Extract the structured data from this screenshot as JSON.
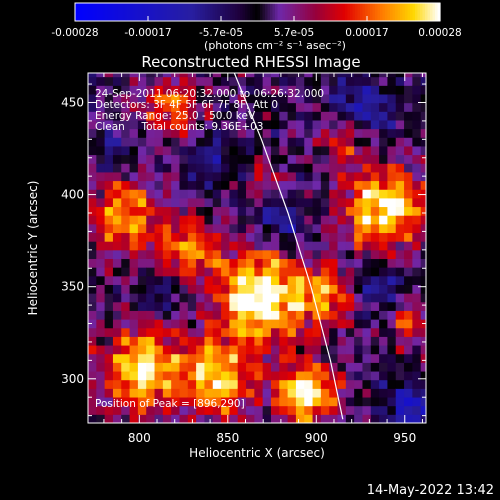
{
  "chart_data": {
    "type": "heatmap",
    "title": "Reconstructed RHESSI Image",
    "xlabel": "Heliocentric X (arcsec)",
    "ylabel": "Heliocentric Y (arcsec)",
    "xlim": [
      771,
      962
    ],
    "ylim": [
      276,
      466
    ],
    "x_ticks": [
      800,
      850,
      900,
      950
    ],
    "y_ticks": [
      300,
      350,
      400,
      450
    ],
    "colorbar": {
      "range": [
        -0.00028,
        0.00028
      ],
      "ticks": [
        "-0.00028",
        "-0.00017",
        "-5.7e-05",
        "5.7e-05",
        "0.00017",
        "0.00028"
      ],
      "unit_label": "(photons cm⁻² s⁻¹ asec⁻²)"
    },
    "info_lines": [
      "24-Sep-2011 06:20:32.000 to 06:26:32.000",
      "Detectors: 3F 4F 5F 6F 7F 8F, Att 0",
      "Energy Range: 25.0 - 50.0 keV",
      "Clean     Total counts: 9.36E+03"
    ],
    "peak_label": "Position of Peak = [896,290]",
    "peak": [
      896,
      290
    ],
    "limb_curve": [
      [
        852,
        470
      ],
      [
        869,
        430
      ],
      [
        884,
        390
      ],
      [
        897,
        350
      ],
      [
        908,
        310
      ],
      [
        915,
        278
      ]
    ],
    "hot_spots": [
      {
        "x": 868,
        "y": 345,
        "amp": 0.0003,
        "sigma": 18
      },
      {
        "x": 895,
        "y": 292,
        "amp": 0.00028,
        "sigma": 12
      },
      {
        "x": 938,
        "y": 393,
        "amp": 0.00027,
        "sigma": 16
      },
      {
        "x": 802,
        "y": 305,
        "amp": 0.00024,
        "sigma": 17
      },
      {
        "x": 845,
        "y": 300,
        "amp": 0.00023,
        "sigma": 14
      },
      {
        "x": 792,
        "y": 388,
        "amp": 0.0002,
        "sigma": 15
      },
      {
        "x": 828,
        "y": 372,
        "amp": 0.00017,
        "sigma": 12
      },
      {
        "x": 818,
        "y": 448,
        "amp": 0.00016,
        "sigma": 12
      },
      {
        "x": 916,
        "y": 432,
        "amp": 0.00016,
        "sigma": 10
      },
      {
        "x": 905,
        "y": 345,
        "amp": 0.00018,
        "sigma": 11
      },
      {
        "x": 953,
        "y": 332,
        "amp": 0.00013,
        "sigma": 9
      },
      {
        "x": 872,
        "y": 408,
        "amp": 0.0001,
        "sigma": 8
      }
    ],
    "cold_spots": [
      {
        "x": 925,
        "y": 445,
        "amp": -0.00016,
        "sigma": 12
      },
      {
        "x": 880,
        "y": 385,
        "amp": -0.00012,
        "sigma": 10
      },
      {
        "x": 955,
        "y": 285,
        "amp": -0.00018,
        "sigma": 10
      },
      {
        "x": 840,
        "y": 420,
        "amp": -0.0001,
        "sigma": 9
      },
      {
        "x": 810,
        "y": 345,
        "amp": -0.0001,
        "sigma": 8
      },
      {
        "x": 935,
        "y": 350,
        "amp": -0.00012,
        "sigma": 9
      },
      {
        "x": 785,
        "y": 425,
        "amp": -8e-05,
        "sigma": 8
      }
    ]
  },
  "footer": {
    "timestamp": "14-May-2022 13:42"
  }
}
